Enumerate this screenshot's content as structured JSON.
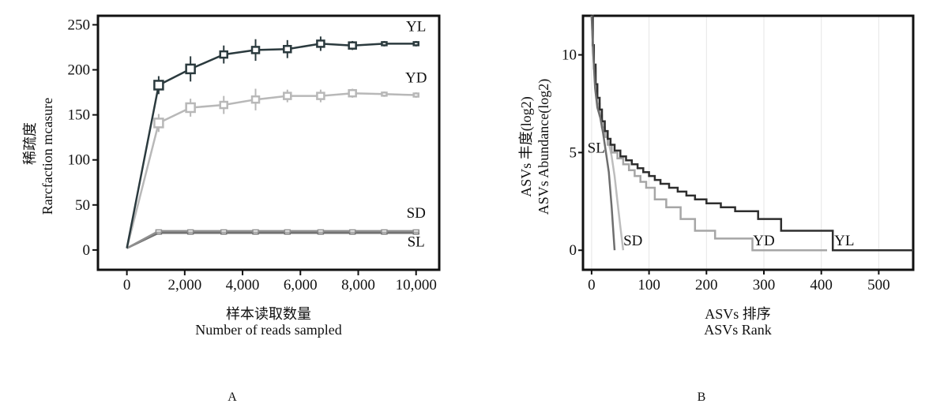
{
  "panels": {
    "a": "A",
    "b": "B"
  },
  "colors": {
    "YL": "#2b3a3e",
    "YD": "#b8b8b8",
    "SD": "#8f8f8f",
    "SL": "#707070",
    "rankYL": "#2e2e2e",
    "rankYD": "#a6a6a6",
    "rankSD": "#bdbdbd",
    "rankSL": "#6e6e6e"
  },
  "chart_data": [
    {
      "type": "line",
      "xlabel_cn": "样本读取数量",
      "xlabel": "Number of reads sampled",
      "ylabel_cn": "稀疏度",
      "ylabel": "Rarcfaction mcasure",
      "xlim": [
        -1000,
        10800
      ],
      "ylim": [
        -22,
        260
      ],
      "xticks": [
        0,
        2000,
        4000,
        6000,
        8000,
        10000
      ],
      "xtick_labels": [
        "0",
        "2,000",
        "4,000",
        "6,000",
        "8,000",
        "10,000"
      ],
      "yticks": [
        0,
        50,
        100,
        150,
        200,
        250
      ],
      "ytick_labels": [
        "0",
        "50",
        "100",
        "150",
        "200",
        "250"
      ],
      "x": [
        0,
        1100,
        2200,
        3350,
        4450,
        5550,
        6700,
        7800,
        8900,
        10000
      ],
      "series": [
        {
          "name": "YL",
          "values": [
            2,
            183,
            201,
            217,
            222,
            223,
            229,
            227,
            229,
            229
          ],
          "err": [
            0,
            10,
            14,
            10,
            12,
            10,
            8,
            5,
            3,
            3
          ]
        },
        {
          "name": "YD",
          "values": [
            2,
            141,
            158,
            161,
            167,
            171,
            171,
            174,
            173,
            172
          ],
          "err": [
            0,
            10,
            10,
            10,
            12,
            7,
            7,
            5,
            3,
            3
          ]
        },
        {
          "name": "SD",
          "values": [
            2,
            21,
            21,
            21,
            21,
            21,
            21,
            21,
            21,
            21
          ],
          "err": [
            0,
            1,
            1,
            1,
            1,
            1,
            1,
            1,
            1,
            1
          ]
        },
        {
          "name": "SL",
          "values": [
            2,
            19,
            19,
            19,
            19,
            19,
            19,
            19,
            19,
            19
          ],
          "err": [
            0,
            1,
            1,
            1,
            1,
            1,
            1,
            1,
            1,
            1
          ]
        }
      ],
      "series_labels": [
        {
          "name": "YL",
          "x": 10000,
          "y": 243
        },
        {
          "name": "YD",
          "x": 10000,
          "y": 186
        },
        {
          "name": "SD",
          "x": 10000,
          "y": 36
        },
        {
          "name": "SL",
          "x": 10000,
          "y": 4
        }
      ]
    },
    {
      "type": "line",
      "xlabel_cn": "ASVs 排序",
      "xlabel": "ASVs Rank",
      "ylabel_cn": "ASVs 丰度(log2)",
      "ylabel": "ASVs Abundance(log2)",
      "xlim": [
        -15,
        560
      ],
      "ylim": [
        -1,
        12
      ],
      "grid": true,
      "xticks": [
        0,
        100,
        200,
        300,
        400,
        500
      ],
      "xtick_labels": [
        "0",
        "100",
        "200",
        "300",
        "400",
        "500"
      ],
      "yticks": [
        0,
        5,
        10
      ],
      "ytick_labels": [
        "0",
        "5",
        "10"
      ],
      "series": [
        {
          "name": "YL",
          "step": true,
          "x": [
            0,
            2,
            4,
            7,
            10,
            14,
            18,
            23,
            28,
            33,
            40,
            50,
            60,
            70,
            80,
            90,
            100,
            110,
            120,
            135,
            150,
            165,
            180,
            200,
            225,
            250,
            290,
            330,
            420,
            560
          ],
          "y": [
            12,
            10.5,
            9.5,
            8.5,
            7.8,
            7.2,
            6.6,
            6.1,
            5.7,
            5.4,
            5.1,
            4.8,
            4.6,
            4.4,
            4.2,
            4.0,
            3.8,
            3.6,
            3.4,
            3.2,
            3.0,
            2.8,
            2.6,
            2.4,
            2.2,
            2.0,
            1.6,
            1.0,
            0,
            0
          ]
        },
        {
          "name": "YD",
          "step": true,
          "x": [
            0,
            2,
            4,
            7,
            10,
            14,
            18,
            23,
            28,
            35,
            45,
            55,
            65,
            75,
            85,
            95,
            110,
            130,
            155,
            180,
            215,
            280,
            410
          ],
          "y": [
            12,
            10.5,
            9.3,
            8.3,
            7.5,
            6.9,
            6.3,
            5.8,
            5.4,
            5.0,
            4.7,
            4.4,
            4.1,
            3.8,
            3.5,
            3.2,
            2.6,
            2.2,
            1.6,
            1.0,
            0.6,
            0,
            0
          ]
        },
        {
          "name": "SD",
          "step": false,
          "x": [
            0,
            3,
            6,
            10,
            15,
            20,
            25,
            30,
            35,
            40,
            45,
            50,
            55
          ],
          "y": [
            12,
            10,
            8.5,
            7.5,
            7.0,
            6.5,
            6.0,
            5.5,
            4.8,
            3.8,
            2.5,
            1.2,
            0
          ]
        },
        {
          "name": "SL",
          "step": false,
          "x": [
            0,
            3,
            6,
            10,
            15,
            20,
            25,
            30,
            35,
            40
          ],
          "y": [
            12,
            10,
            8.3,
            7.3,
            6.8,
            6.0,
            5.0,
            4.0,
            2.2,
            0
          ]
        }
      ],
      "series_labels": [
        {
          "name": "SL",
          "x": 8,
          "y": 5.0
        },
        {
          "name": "SD",
          "x": 72,
          "y": 0.25
        },
        {
          "name": "YD",
          "x": 300,
          "y": 0.25
        },
        {
          "name": "YL",
          "x": 440,
          "y": 0.25
        }
      ]
    }
  ]
}
